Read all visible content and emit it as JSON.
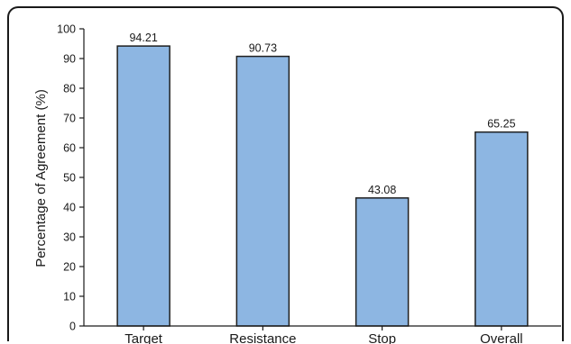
{
  "chart_data": {
    "type": "bar",
    "title": "",
    "xlabel": "",
    "ylabel": "Percentage of Agreement (%)",
    "categories": [
      "Target",
      "Resistance",
      "Stop",
      "Overall"
    ],
    "values": [
      94.21,
      90.73,
      43.08,
      65.25
    ],
    "data_labels": [
      "94.21",
      "90.73",
      "43.08",
      "65.25"
    ],
    "ylim": [
      0,
      100
    ],
    "yticks": [
      0,
      10,
      20,
      30,
      40,
      50,
      60,
      70,
      80,
      90,
      100
    ],
    "grid": false,
    "legend": "none",
    "colors": {
      "bar_fill": "#8db6e2",
      "bar_stroke": "#1f1f1f",
      "axis": "#1a1a1a"
    }
  }
}
